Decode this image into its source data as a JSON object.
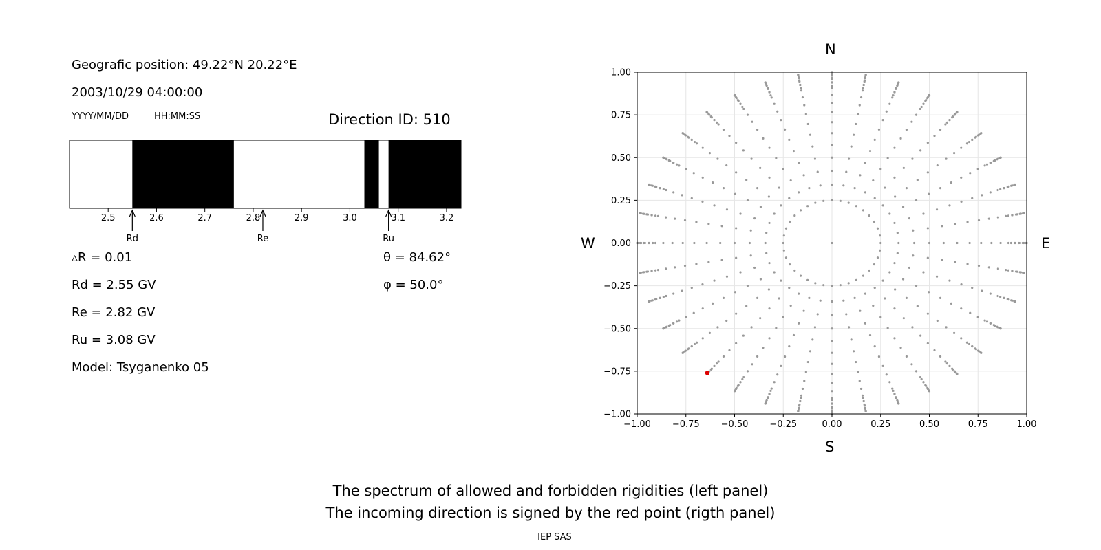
{
  "left_panel": {
    "position_text": "Geografic position: 49.22°N 20.22°E",
    "datetime_text": "2003/10/29 04:00:00",
    "date_format": "YYYY/MM/DD",
    "time_format": "HH:MM:SS",
    "direction_text": "Direction ID: 510",
    "stats": [
      "▵R = 0.01",
      "Rd = 2.55 GV",
      "Re = 2.82 GV",
      "Ru = 3.08 GV",
      "Model: Tsyganenko 05"
    ],
    "theta_text": "θ = 84.62°",
    "phi_text": "φ = 50.0°"
  },
  "chart_data": [
    {
      "type": "bar",
      "description": "rigidity spectrum band: black = forbidden, white = allowed",
      "xlim": [
        2.42,
        3.23
      ],
      "xticks": [
        "2.5",
        "2.6",
        "2.7",
        "2.8",
        "2.9",
        "3.0",
        "3.1",
        "3.2"
      ],
      "tick_values": [
        2.5,
        2.6,
        2.7,
        2.8,
        2.9,
        3.0,
        3.1,
        3.2
      ],
      "forbidden_intervals": [
        [
          2.55,
          2.76
        ],
        [
          3.03,
          3.06
        ],
        [
          3.08,
          3.23
        ]
      ],
      "markers": [
        {
          "label": "Rd",
          "value": 2.55
        },
        {
          "label": "Re",
          "value": 2.82
        },
        {
          "label": "Ru",
          "value": 3.08
        }
      ]
    },
    {
      "type": "scatter",
      "xlim": [
        -1.0,
        1.0
      ],
      "ylim": [
        -1.0,
        1.0
      ],
      "xticks": [
        "−1.00",
        "−0.75",
        "−0.50",
        "−0.25",
        "0.00",
        "0.25",
        "0.50",
        "0.75",
        "1.00"
      ],
      "yticks": [
        "1.00",
        "0.75",
        "0.50",
        "0.25",
        "0.00",
        "−0.25",
        "−0.50",
        "−0.75",
        "−1.00"
      ],
      "tick_values_x": [
        -1.0,
        -0.75,
        -0.5,
        -0.25,
        0.0,
        0.25,
        0.5,
        0.75,
        1.0
      ],
      "tick_values_y": [
        1.0,
        0.75,
        0.5,
        0.25,
        0.0,
        -0.25,
        -0.5,
        -0.75,
        -1.0
      ],
      "grid": true,
      "compass": {
        "north": "N",
        "south": "S",
        "west": "W",
        "east": "E"
      },
      "directions_grid": {
        "description": "grey points at polar directions; radius = sin(zenith)",
        "zenith_deg": [
          0,
          5,
          10,
          15,
          20,
          25,
          30,
          35,
          40,
          45,
          50,
          55,
          60,
          65,
          70,
          75,
          80,
          85,
          90
        ],
        "azimuth_step_deg": 10,
        "inner_ring_radius": 0.25,
        "inner_ring_azimuth_step_deg": 10
      },
      "highlighted_point": {
        "x": -0.64,
        "y": -0.76,
        "color": "#dd0000"
      },
      "point_color": "#999999"
    }
  ],
  "caption": {
    "line1": "The spectrum of allowed and forbidden rigidities (left panel)",
    "line2": "The incoming direction is signed by the red point (rigth panel)",
    "credit": "IEP SAS"
  }
}
